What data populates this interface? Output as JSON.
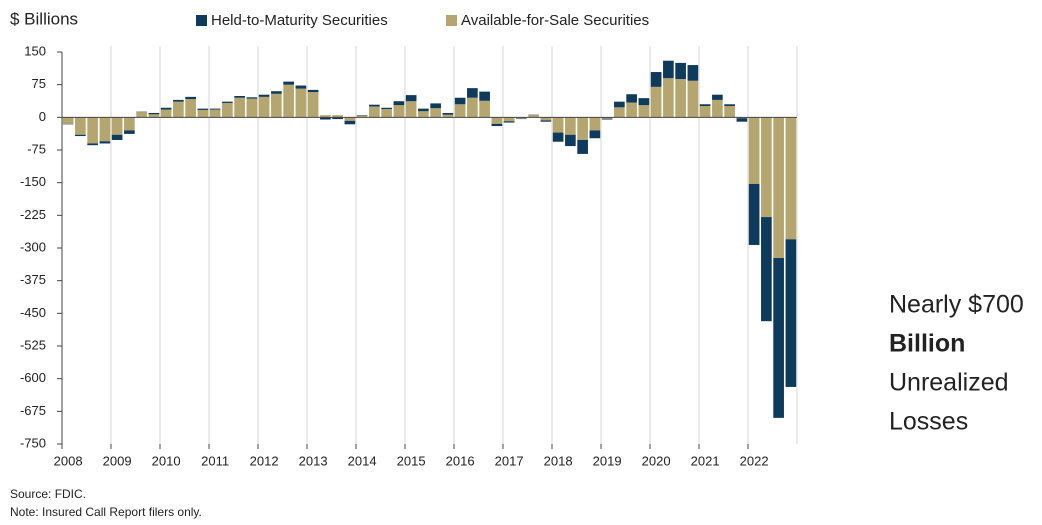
{
  "chart_data": {
    "type": "stacked_bar",
    "title": "$ Billions",
    "categories": [
      "2008",
      null,
      null,
      null,
      "2009",
      null,
      null,
      null,
      "2010",
      null,
      null,
      null,
      "2011",
      null,
      null,
      null,
      "2012",
      null,
      null,
      null,
      "2013",
      null,
      null,
      null,
      "2014",
      null,
      null,
      null,
      "2015",
      null,
      null,
      null,
      "2016",
      null,
      null,
      null,
      "2017",
      null,
      null,
      null,
      "2018",
      null,
      null,
      null,
      "2019",
      null,
      null,
      null,
      "2020",
      null,
      null,
      null,
      "2021",
      null,
      null,
      null,
      "2022",
      null,
      null,
      null
    ],
    "series": [
      {
        "name": "Available-for-Sale Securities",
        "color": "#b5a56f",
        "values": [
          -15,
          -40,
          -60,
          -55,
          -40,
          -30,
          12,
          7,
          18,
          36,
          42,
          17,
          18,
          33,
          45,
          43,
          47,
          54,
          75,
          66,
          58,
          5,
          5,
          -8,
          4,
          25,
          19,
          28,
          37,
          14,
          21,
          6,
          30,
          45,
          38,
          -15,
          -9,
          -3,
          5,
          -7,
          -35,
          -40,
          -52,
          -30,
          -3,
          23,
          34,
          28,
          70,
          90,
          88,
          84,
          26,
          40,
          26,
          -2,
          -153,
          -229,
          -323,
          -280
        ]
      },
      {
        "name": "Held-to-Maturity Securities",
        "color": "#0e3a5b",
        "values": [
          -1,
          -3,
          -4,
          -5,
          -12,
          -8,
          1,
          3,
          4,
          4,
          5,
          3,
          2,
          3,
          4,
          3,
          5,
          6,
          7,
          7,
          5,
          -5,
          -4,
          -8,
          1,
          4,
          3,
          9,
          14,
          6,
          11,
          4,
          15,
          22,
          21,
          -5,
          -3,
          -1,
          1,
          -3,
          -21,
          -26,
          -32,
          -18,
          -2,
          13,
          19,
          16,
          34,
          40,
          37,
          36,
          4,
          12,
          4,
          -8,
          -140,
          -239,
          -367,
          -339
        ]
      }
    ],
    "ylim": [
      -750,
      150
    ],
    "yticks": [
      150,
      75,
      0,
      -75,
      -150,
      -225,
      -300,
      -375,
      -450,
      -525,
      -600,
      -675,
      -750
    ],
    "legend": "top",
    "annotation": [
      "Nearly $700",
      "Billion",
      "Unrealized",
      "Losses"
    ],
    "source": "Source: FDIC.",
    "note": "Note: Insured Call Report filers only."
  }
}
